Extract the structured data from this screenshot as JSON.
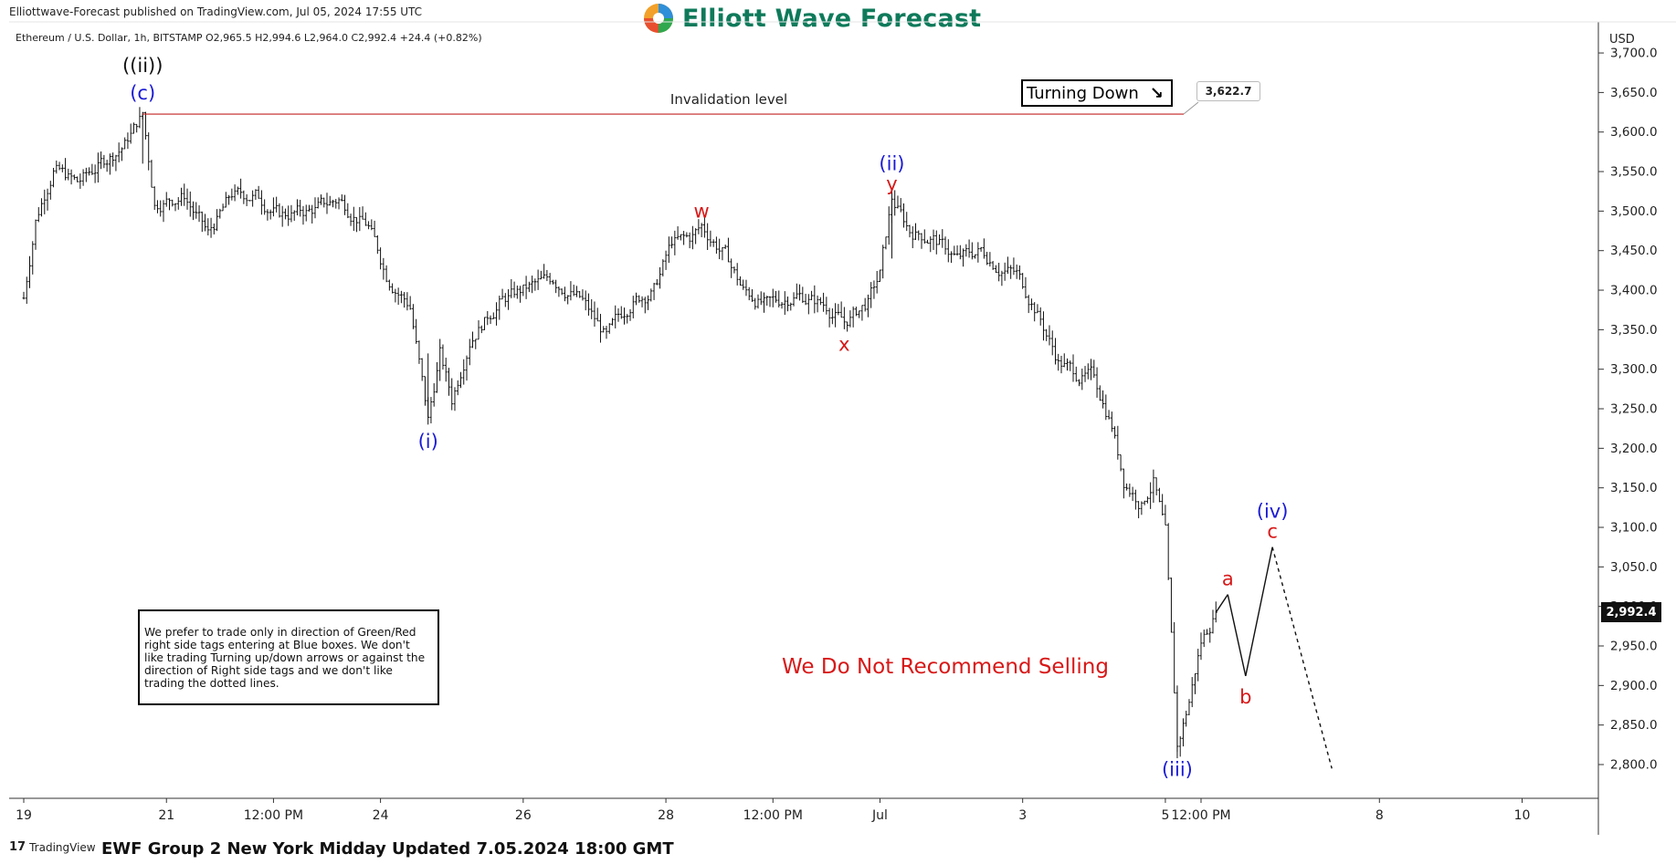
{
  "header": {
    "published": "Elliottwave-Forecast published on TradingView.com, Jul 05, 2024 17:55 UTC",
    "logo_text": "Elliott Wave Forecast",
    "legend": "Ethereum / U.S. Dollar, 1h, BITSTAMP  O2,965.5  H2,994.6  L2,964.0  C2,992.4  +24.4 (+0.82%)"
  },
  "colors": {
    "blue_label": "#1a1ad6",
    "red_label": "#d81818",
    "invalidation_line": "#c22020",
    "candle": "#111111",
    "logo": "#0e7a5a"
  },
  "annotations": {
    "invalidation_label": "Invalidation level",
    "turning_down": "Turning Down",
    "turning_down_icon": "arrow-down-right-icon",
    "invalidation_price": "3,622.7",
    "no_sell": "We Do Not Recommend Selling",
    "note": "We prefer to trade only in direction of Green/Red right side tags entering at Blue boxes. We don't like trading Turning up/down arrows or against the direction of Right side tags and we don't like trading the dotted lines."
  },
  "footer": {
    "brand": "TradingView",
    "title": "EWF Group 2 New York Midday Updated 7.05.2024 18:00 GMT"
  },
  "chart_data": {
    "type": "candlestick",
    "symbol": "Ethereum / U.S. Dollar",
    "interval": "1h",
    "exchange": "BITSTAMP",
    "ohlc": {
      "open": 2965.5,
      "high": 2994.6,
      "low": 2964.0,
      "close": 2992.4,
      "change": 24.4,
      "change_pct": 0.82
    },
    "currency": "USD",
    "current_price_label": "2,992.4",
    "ylim": [
      2770,
      3720
    ],
    "y_ticks": [
      2800,
      2850,
      2900,
      2950,
      3000,
      3050,
      3100,
      3150,
      3200,
      3250,
      3300,
      3350,
      3400,
      3450,
      3500,
      3550,
      3600,
      3650,
      3700
    ],
    "y_tick_labels": [
      "2,800.0",
      "2,850.0",
      "2,900.0",
      "2,950.0",
      "3,000.0",
      "3,050.0",
      "3,100.0",
      "3,150.0",
      "3,200.0",
      "3,250.0",
      "3,300.0",
      "3,350.0",
      "3,400.0",
      "3,450.0",
      "3,500.0",
      "3,550.0",
      "3,600.0",
      "3,650.0",
      "3,700.0"
    ],
    "x_tick_labels": [
      "19",
      "21",
      "12:00 PM",
      "24",
      "26",
      "28",
      "12:00 PM",
      "Jul",
      "3",
      "5",
      "12:00 PM",
      "8",
      "10"
    ],
    "x_tick_times": [
      "2024-06-19T00:00",
      "2024-06-21T00:00",
      "2024-06-22T12:00",
      "2024-06-24T00:00",
      "2024-06-26T00:00",
      "2024-06-28T00:00",
      "2024-06-29T12:00",
      "2024-07-01T00:00",
      "2024-07-03T00:00",
      "2024-07-05T00:00",
      "2024-07-05T12:00",
      "2024-07-08T00:00",
      "2024-07-10T00:00"
    ],
    "price_path": [
      {
        "t": "2024-06-19T00:00",
        "p": 3390
      },
      {
        "t": "2024-06-19T04:00",
        "p": 3490
      },
      {
        "t": "2024-06-19T10:00",
        "p": 3555
      },
      {
        "t": "2024-06-19T18:00",
        "p": 3535
      },
      {
        "t": "2024-06-20T02:00",
        "p": 3560
      },
      {
        "t": "2024-06-20T10:00",
        "p": 3585
      },
      {
        "t": "2024-06-20T16:00",
        "p": 3622.7
      },
      {
        "t": "2024-06-20T20:00",
        "p": 3510
      },
      {
        "t": "2024-06-21T06:00",
        "p": 3520
      },
      {
        "t": "2024-06-21T14:00",
        "p": 3470
      },
      {
        "t": "2024-06-21T22:00",
        "p": 3520
      },
      {
        "t": "2024-06-22T06:00",
        "p": 3520
      },
      {
        "t": "2024-06-22T14:00",
        "p": 3495
      },
      {
        "t": "2024-06-23T00:00",
        "p": 3500
      },
      {
        "t": "2024-06-23T10:00",
        "p": 3515
      },
      {
        "t": "2024-06-23T20:00",
        "p": 3480
      },
      {
        "t": "2024-06-24T02:00",
        "p": 3420
      },
      {
        "t": "2024-06-24T10:00",
        "p": 3380
      },
      {
        "t": "2024-06-24T16:00",
        "p": 3235
      },
      {
        "t": "2024-06-24T20:00",
        "p": 3320
      },
      {
        "t": "2024-06-25T00:00",
        "p": 3260
      },
      {
        "t": "2024-06-25T06:00",
        "p": 3340
      },
      {
        "t": "2024-06-25T16:00",
        "p": 3385
      },
      {
        "t": "2024-06-26T00:00",
        "p": 3400
      },
      {
        "t": "2024-06-26T10:00",
        "p": 3415
      },
      {
        "t": "2024-06-26T20:00",
        "p": 3385
      },
      {
        "t": "2024-06-27T04:00",
        "p": 3340
      },
      {
        "t": "2024-06-27T12:00",
        "p": 3385
      },
      {
        "t": "2024-06-27T20:00",
        "p": 3400
      },
      {
        "t": "2024-06-28T02:00",
        "p": 3460
      },
      {
        "t": "2024-06-28T08:00",
        "p": 3465
      },
      {
        "t": "2024-06-28T12:00",
        "p": 3480
      },
      {
        "t": "2024-06-28T20:00",
        "p": 3445
      },
      {
        "t": "2024-06-29T02:00",
        "p": 3400
      },
      {
        "t": "2024-06-29T10:00",
        "p": 3380
      },
      {
        "t": "2024-06-29T20:00",
        "p": 3395
      },
      {
        "t": "2024-06-30T06:00",
        "p": 3380
      },
      {
        "t": "2024-06-30T12:00",
        "p": 3358
      },
      {
        "t": "2024-06-30T20:00",
        "p": 3385
      },
      {
        "t": "2024-07-01T00:00",
        "p": 3420
      },
      {
        "t": "2024-07-01T04:00",
        "p": 3515
      },
      {
        "t": "2024-07-01T10:00",
        "p": 3475
      },
      {
        "t": "2024-07-01T18:00",
        "p": 3465
      },
      {
        "t": "2024-07-02T02:00",
        "p": 3440
      },
      {
        "t": "2024-07-02T10:00",
        "p": 3450
      },
      {
        "t": "2024-07-02T16:00",
        "p": 3430
      },
      {
        "t": "2024-07-02T22:00",
        "p": 3420
      },
      {
        "t": "2024-07-03T04:00",
        "p": 3380
      },
      {
        "t": "2024-07-03T12:00",
        "p": 3310
      },
      {
        "t": "2024-07-03T20:00",
        "p": 3290
      },
      {
        "t": "2024-07-04T00:00",
        "p": 3290
      },
      {
        "t": "2024-07-04T06:00",
        "p": 3230
      },
      {
        "t": "2024-07-04T10:00",
        "p": 3160
      },
      {
        "t": "2024-07-04T16:00",
        "p": 3130
      },
      {
        "t": "2024-07-04T20:00",
        "p": 3160
      },
      {
        "t": "2024-07-05T00:00",
        "p": 3090
      },
      {
        "t": "2024-07-05T04:00",
        "p": 2820
      },
      {
        "t": "2024-07-05T08:00",
        "p": 2880
      },
      {
        "t": "2024-07-05T12:00",
        "p": 2955
      },
      {
        "t": "2024-07-05T17:00",
        "p": 2992.4
      }
    ],
    "projection": [
      {
        "t": "2024-07-05T21:00",
        "p": 3015,
        "style": "solid"
      },
      {
        "t": "2024-07-06T03:00",
        "p": 2912,
        "style": "solid"
      },
      {
        "t": "2024-07-06T12:00",
        "p": 3075,
        "style": "solid"
      },
      {
        "t": "2024-07-07T08:00",
        "p": 2795,
        "style": "dotted"
      }
    ],
    "invalidation_level": 3622.7,
    "wave_labels": [
      {
        "text": "((ii))",
        "t": "2024-06-20T16:00",
        "p": 3622.7,
        "color": "black",
        "pos": "above2"
      },
      {
        "text": "(c)",
        "t": "2024-06-20T16:00",
        "p": 3622.7,
        "color": "blue",
        "pos": "above"
      },
      {
        "text": "(i)",
        "t": "2024-06-24T16:00",
        "p": 3235,
        "color": "blue",
        "pos": "below"
      },
      {
        "text": "w",
        "t": "2024-06-28T12:00",
        "p": 3480,
        "color": "red",
        "pos": "above"
      },
      {
        "text": "x",
        "t": "2024-06-30T12:00",
        "p": 3358,
        "color": "red",
        "pos": "below"
      },
      {
        "text": "(ii)",
        "t": "2024-07-01T04:00",
        "p": 3515,
        "color": "blue",
        "pos": "above2"
      },
      {
        "text": "y",
        "t": "2024-07-01T04:00",
        "p": 3515,
        "color": "red",
        "pos": "above"
      },
      {
        "text": "(iii)",
        "t": "2024-07-05T04:00",
        "p": 2820,
        "color": "blue",
        "pos": "below"
      },
      {
        "text": "a",
        "t": "2024-07-05T21:00",
        "p": 3015,
        "color": "red",
        "pos": "above"
      },
      {
        "text": "b",
        "t": "2024-07-06T03:00",
        "p": 2912,
        "color": "red",
        "pos": "below"
      },
      {
        "text": "(iv)",
        "t": "2024-07-06T12:00",
        "p": 3075,
        "color": "blue",
        "pos": "above2"
      },
      {
        "text": "c",
        "t": "2024-07-06T12:00",
        "p": 3075,
        "color": "red",
        "pos": "above"
      }
    ]
  }
}
